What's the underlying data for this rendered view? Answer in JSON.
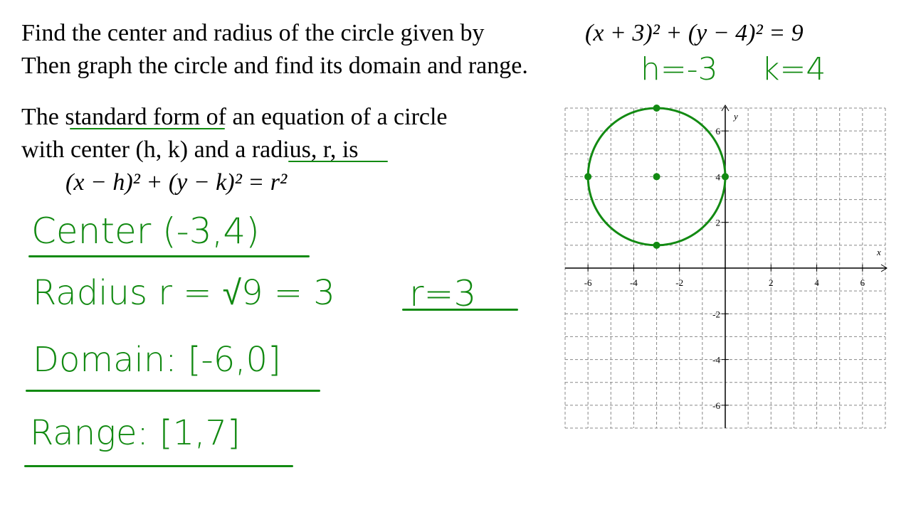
{
  "problem": {
    "line1": "Find the center and radius of the circle given by",
    "equation": "(x + 3)² + (y − 4)² = 9",
    "line2": "Then graph the circle and find its domain and range."
  },
  "notes": {
    "h": "h=-3",
    "k": "k=4"
  },
  "definition": {
    "line1": "The standard form of an equation of a circle",
    "line2": "with center (h, k) and a radius, r, is",
    "equation": "(x − h)² + (y − k)² = r²"
  },
  "work": {
    "center": "Center (-3,4)",
    "radius": "Radius  r = √9 = 3",
    "radius_result": "r=3",
    "domain": "Domain: [-6,0]",
    "range": "Range: [1,7]"
  },
  "graph": {
    "x_label": "x",
    "y_label": "y",
    "xlim": [
      -7,
      7
    ],
    "ylim": [
      -7,
      7
    ],
    "xticks": [
      -6,
      -4,
      -2,
      2,
      4,
      6
    ],
    "yticks": [
      -6,
      -4,
      -2,
      2,
      4,
      6
    ],
    "grid": true,
    "color": "#128a12",
    "circle": {
      "center": [
        -3,
        4
      ],
      "radius": 3
    },
    "points": [
      [
        -3,
        7
      ],
      [
        -6,
        4
      ],
      [
        -3,
        4
      ],
      [
        0,
        4
      ],
      [
        -3,
        1
      ]
    ]
  }
}
